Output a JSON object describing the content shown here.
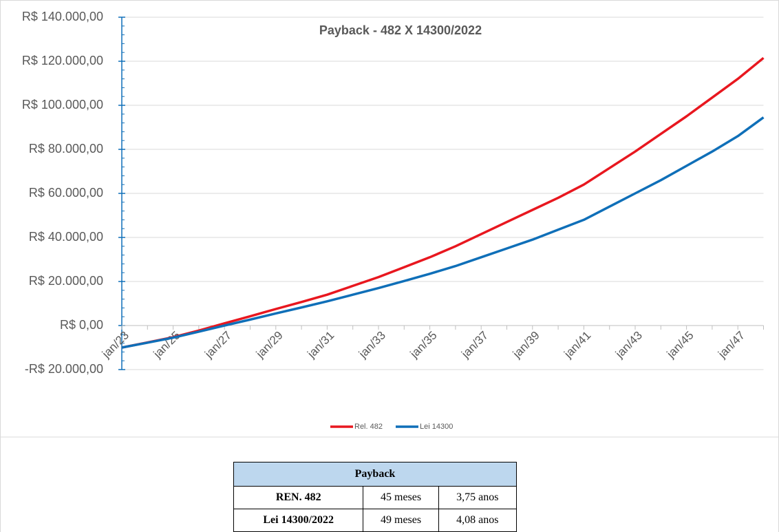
{
  "chart_data": {
    "type": "line",
    "title": "Payback - 482 X 14300/2022",
    "categories": [
      "jan/23",
      null,
      "jan/25",
      null,
      "jan/27",
      null,
      "jan/29",
      null,
      "jan/31",
      null,
      "jan/33",
      null,
      "jan/35",
      null,
      "jan/37",
      null,
      "jan/39",
      null,
      "jan/41",
      null,
      "jan/43",
      null,
      "jan/45",
      null,
      "jan/47",
      null
    ],
    "series": [
      {
        "name": "Rel. 482",
        "color": "#e8171f",
        "values": [
          -10000,
          -7700,
          -5300,
          -2300,
          1000,
          4200,
          7500,
          10700,
          14000,
          18000,
          22000,
          26500,
          31000,
          36000,
          41500,
          47000,
          52500,
          58000,
          64000,
          71500,
          79000,
          87000,
          95000,
          103500,
          112000,
          121500
        ]
      },
      {
        "name": "Lei 14300",
        "color": "#0f6fb8",
        "values": [
          -10000,
          -7800,
          -5500,
          -2800,
          0,
          2700,
          5500,
          8200,
          11000,
          14000,
          17000,
          20200,
          23500,
          27000,
          31000,
          35000,
          39000,
          43500,
          48000,
          54000,
          60000,
          66000,
          72500,
          79000,
          86000,
          94500
        ]
      }
    ],
    "ylim": [
      -20000,
      140000
    ],
    "yticks": [
      {
        "value": -20000,
        "label": "-R$ 20.000,00"
      },
      {
        "value": 0,
        "label": "R$ 0,00"
      },
      {
        "value": 20000,
        "label": "R$ 20.000,00"
      },
      {
        "value": 40000,
        "label": "R$ 40.000,00"
      },
      {
        "value": 60000,
        "label": "R$ 60.000,00"
      },
      {
        "value": 80000,
        "label": "R$ 80.000,00"
      },
      {
        "value": 100000,
        "label": "R$ 100.000,00"
      },
      {
        "value": 120000,
        "label": "R$ 120.000,00"
      },
      {
        "value": 140000,
        "label": "R$ 140.000,00"
      }
    ],
    "grid": true,
    "legend": "bottom"
  },
  "table": {
    "title": "Payback",
    "rows": [
      [
        "REN. 482",
        "45 meses",
        "3,75 anos"
      ],
      [
        "Lei 14300/2022",
        "49 meses",
        "4,08 anos"
      ]
    ]
  }
}
